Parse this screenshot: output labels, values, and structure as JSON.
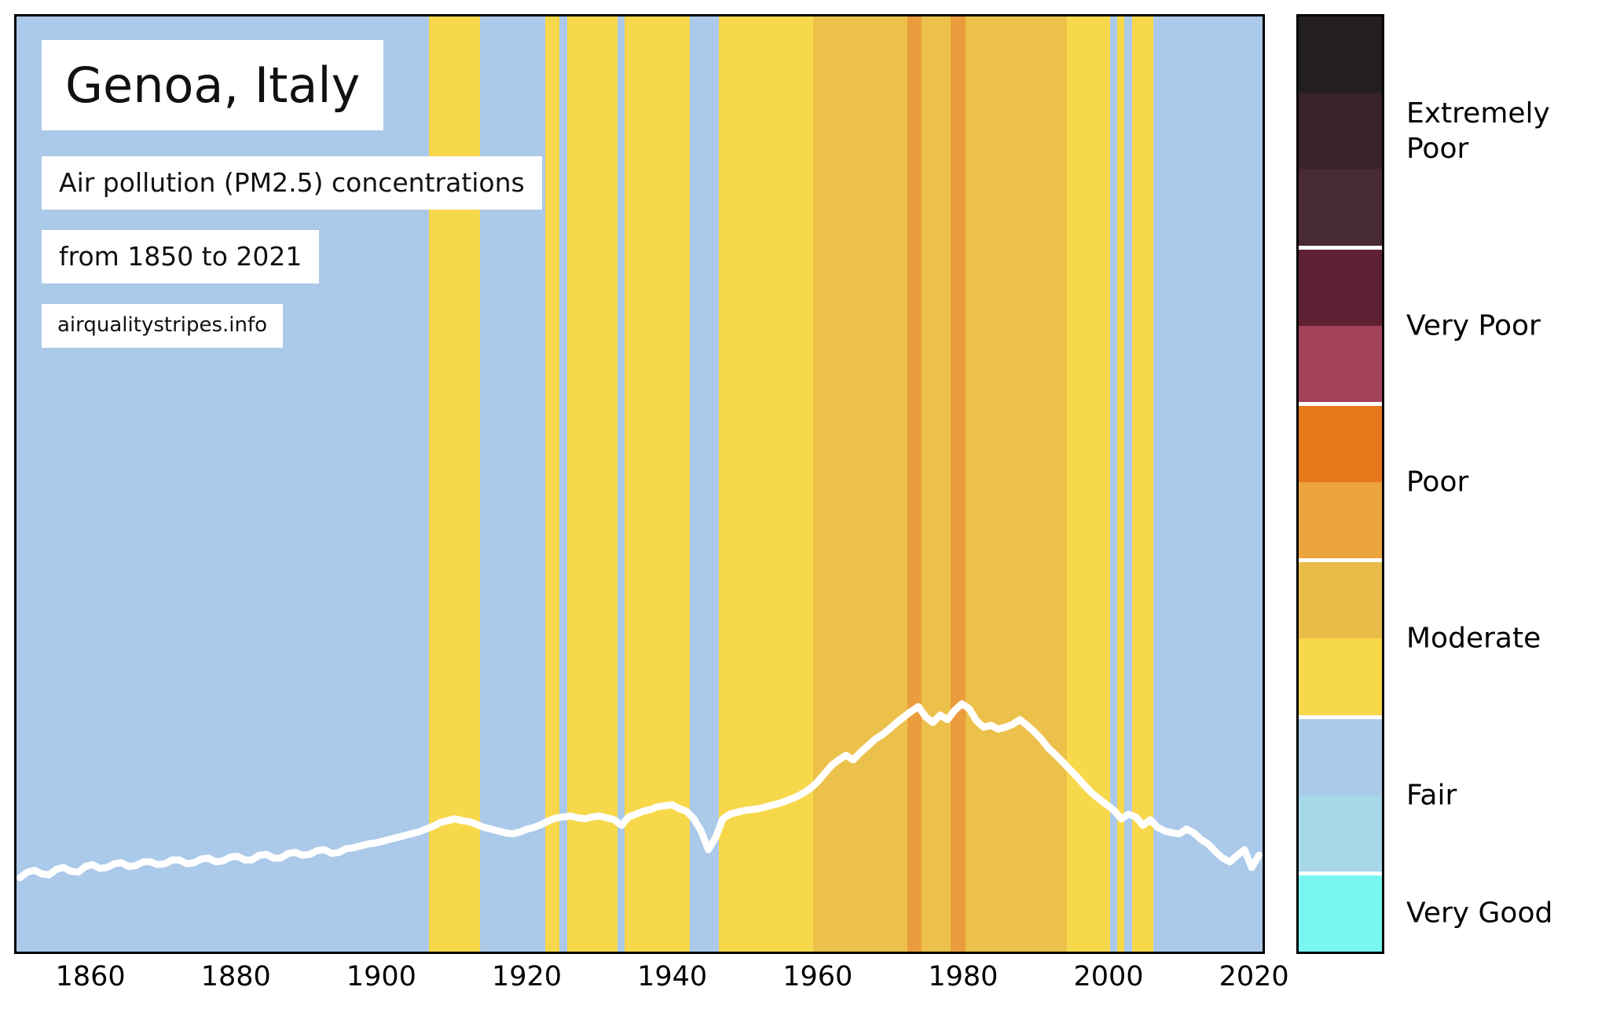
{
  "header": {
    "title": "Genoa, Italy",
    "subtitle": "Air pollution (PM2.5) concentrations",
    "period": "from 1850 to 2021",
    "source": "airqualitystripes.info"
  },
  "legend": {
    "categories": [
      {
        "label": "Extremely Poor",
        "blocks": [
          "#231f20",
          "#38232a",
          "#482a34"
        ]
      },
      {
        "label": "Very Poor",
        "blocks": [
          "#5e2033",
          "#a24258"
        ]
      },
      {
        "label": "Poor",
        "blocks": [
          "#e4781a",
          "#eca43f"
        ]
      },
      {
        "label": "Moderate",
        "blocks": [
          "#e8bc49",
          "#f8d84b"
        ]
      },
      {
        "label": "Fair",
        "blocks": [
          "#abc9e9",
          "#a6d8e9"
        ]
      },
      {
        "label": "Very Good",
        "blocks": [
          "#79f6f2"
        ]
      }
    ]
  },
  "chart_data": [
    {
      "type": "heatmap",
      "title": "Genoa, Italy",
      "subtitle": "Air pollution (PM2.5) concentrations from 1850 to 2021",
      "x_range": [
        1850,
        2021
      ],
      "x_ticks": [
        1860,
        1880,
        1900,
        1920,
        1940,
        1960,
        1980,
        2000,
        2020
      ],
      "stripe_colors": {
        "fair": "#abc9e9",
        "moderate_low": "#f8d84b",
        "moderate_high": "#ecc14b",
        "poor_low": "#eb9c3c"
      },
      "segments": [
        {
          "from": 1850,
          "to": 1906,
          "cat": "fair"
        },
        {
          "from": 1907,
          "to": 1913,
          "cat": "moderate_low"
        },
        {
          "from": 1914,
          "to": 1922,
          "cat": "fair"
        },
        {
          "from": 1923,
          "to": 1924,
          "cat": "moderate_low"
        },
        {
          "from": 1925,
          "to": 1925,
          "cat": "fair"
        },
        {
          "from": 1926,
          "to": 1932,
          "cat": "moderate_low"
        },
        {
          "from": 1933,
          "to": 1933,
          "cat": "fair"
        },
        {
          "from": 1934,
          "to": 1942,
          "cat": "moderate_low"
        },
        {
          "from": 1943,
          "to": 1946,
          "cat": "fair"
        },
        {
          "from": 1947,
          "to": 1959,
          "cat": "moderate_low"
        },
        {
          "from": 1960,
          "to": 1972,
          "cat": "moderate_high"
        },
        {
          "from": 1973,
          "to": 1974,
          "cat": "poor_low"
        },
        {
          "from": 1975,
          "to": 1978,
          "cat": "moderate_high"
        },
        {
          "from": 1979,
          "to": 1980,
          "cat": "poor_low"
        },
        {
          "from": 1981,
          "to": 1994,
          "cat": "moderate_high"
        },
        {
          "from": 1995,
          "to": 2000,
          "cat": "moderate_low"
        },
        {
          "from": 2001,
          "to": 2001,
          "cat": "fair"
        },
        {
          "from": 2002,
          "to": 2002,
          "cat": "moderate_low"
        },
        {
          "from": 2003,
          "to": 2003,
          "cat": "fair"
        },
        {
          "from": 2004,
          "to": 2006,
          "cat": "moderate_low"
        },
        {
          "from": 2007,
          "to": 2021,
          "cat": "fair"
        }
      ]
    },
    {
      "type": "line",
      "name": "PM2.5 concentration trend (white line, no numeric y-axis shown; values are fraction of plot height from bottom)",
      "points": [
        [
          1850,
          0.079
        ],
        [
          1851,
          0.085
        ],
        [
          1852,
          0.087
        ],
        [
          1853,
          0.083
        ],
        [
          1854,
          0.082
        ],
        [
          1855,
          0.088
        ],
        [
          1856,
          0.09
        ],
        [
          1857,
          0.086
        ],
        [
          1858,
          0.085
        ],
        [
          1859,
          0.091
        ],
        [
          1860,
          0.093
        ],
        [
          1861,
          0.089
        ],
        [
          1862,
          0.09
        ],
        [
          1863,
          0.094
        ],
        [
          1864,
          0.095
        ],
        [
          1865,
          0.091
        ],
        [
          1866,
          0.092
        ],
        [
          1867,
          0.096
        ],
        [
          1868,
          0.096
        ],
        [
          1869,
          0.093
        ],
        [
          1870,
          0.094
        ],
        [
          1871,
          0.098
        ],
        [
          1872,
          0.098
        ],
        [
          1873,
          0.094
        ],
        [
          1874,
          0.095
        ],
        [
          1875,
          0.099
        ],
        [
          1876,
          0.1
        ],
        [
          1877,
          0.096
        ],
        [
          1878,
          0.097
        ],
        [
          1879,
          0.101
        ],
        [
          1880,
          0.102
        ],
        [
          1881,
          0.098
        ],
        [
          1882,
          0.098
        ],
        [
          1883,
          0.103
        ],
        [
          1884,
          0.104
        ],
        [
          1885,
          0.1
        ],
        [
          1886,
          0.1
        ],
        [
          1887,
          0.105
        ],
        [
          1888,
          0.106
        ],
        [
          1889,
          0.103
        ],
        [
          1890,
          0.104
        ],
        [
          1891,
          0.108
        ],
        [
          1892,
          0.109
        ],
        [
          1893,
          0.105
        ],
        [
          1894,
          0.106
        ],
        [
          1895,
          0.11
        ],
        [
          1896,
          0.111
        ],
        [
          1897,
          0.113
        ],
        [
          1898,
          0.115
        ],
        [
          1899,
          0.116
        ],
        [
          1900,
          0.118
        ],
        [
          1901,
          0.12
        ],
        [
          1902,
          0.122
        ],
        [
          1903,
          0.124
        ],
        [
          1904,
          0.126
        ],
        [
          1905,
          0.128
        ],
        [
          1906,
          0.131
        ],
        [
          1907,
          0.134
        ],
        [
          1908,
          0.138
        ],
        [
          1909,
          0.14
        ],
        [
          1910,
          0.142
        ],
        [
          1911,
          0.14
        ],
        [
          1912,
          0.139
        ],
        [
          1913,
          0.136
        ],
        [
          1914,
          0.133
        ],
        [
          1915,
          0.131
        ],
        [
          1916,
          0.129
        ],
        [
          1917,
          0.127
        ],
        [
          1918,
          0.126
        ],
        [
          1919,
          0.128
        ],
        [
          1920,
          0.131
        ],
        [
          1921,
          0.133
        ],
        [
          1922,
          0.136
        ],
        [
          1923,
          0.14
        ],
        [
          1924,
          0.143
        ],
        [
          1925,
          0.144
        ],
        [
          1926,
          0.145
        ],
        [
          1927,
          0.143
        ],
        [
          1928,
          0.142
        ],
        [
          1929,
          0.144
        ],
        [
          1930,
          0.145
        ],
        [
          1931,
          0.143
        ],
        [
          1932,
          0.141
        ],
        [
          1933,
          0.135
        ],
        [
          1934,
          0.144
        ],
        [
          1935,
          0.147
        ],
        [
          1936,
          0.15
        ],
        [
          1937,
          0.152
        ],
        [
          1938,
          0.155
        ],
        [
          1939,
          0.156
        ],
        [
          1940,
          0.157
        ],
        [
          1941,
          0.153
        ],
        [
          1942,
          0.15
        ],
        [
          1943,
          0.142
        ],
        [
          1944,
          0.129
        ],
        [
          1945,
          0.109
        ],
        [
          1946,
          0.122
        ],
        [
          1947,
          0.142
        ],
        [
          1948,
          0.147
        ],
        [
          1949,
          0.149
        ],
        [
          1950,
          0.151
        ],
        [
          1951,
          0.152
        ],
        [
          1952,
          0.153
        ],
        [
          1953,
          0.155
        ],
        [
          1954,
          0.157
        ],
        [
          1955,
          0.159
        ],
        [
          1956,
          0.162
        ],
        [
          1957,
          0.165
        ],
        [
          1958,
          0.169
        ],
        [
          1959,
          0.174
        ],
        [
          1960,
          0.181
        ],
        [
          1961,
          0.19
        ],
        [
          1962,
          0.199
        ],
        [
          1963,
          0.205
        ],
        [
          1964,
          0.21
        ],
        [
          1965,
          0.205
        ],
        [
          1966,
          0.213
        ],
        [
          1967,
          0.22
        ],
        [
          1968,
          0.227
        ],
        [
          1969,
          0.232
        ],
        [
          1970,
          0.238
        ],
        [
          1971,
          0.245
        ],
        [
          1972,
          0.251
        ],
        [
          1973,
          0.257
        ],
        [
          1974,
          0.262
        ],
        [
          1975,
          0.251
        ],
        [
          1976,
          0.245
        ],
        [
          1977,
          0.253
        ],
        [
          1978,
          0.248
        ],
        [
          1979,
          0.258
        ],
        [
          1980,
          0.265
        ],
        [
          1981,
          0.26
        ],
        [
          1982,
          0.247
        ],
        [
          1983,
          0.24
        ],
        [
          1984,
          0.242
        ],
        [
          1985,
          0.238
        ],
        [
          1986,
          0.24
        ],
        [
          1987,
          0.243
        ],
        [
          1988,
          0.248
        ],
        [
          1989,
          0.242
        ],
        [
          1990,
          0.235
        ],
        [
          1991,
          0.227
        ],
        [
          1992,
          0.217
        ],
        [
          1993,
          0.21
        ],
        [
          1994,
          0.202
        ],
        [
          1995,
          0.194
        ],
        [
          1996,
          0.186
        ],
        [
          1997,
          0.177
        ],
        [
          1998,
          0.169
        ],
        [
          1999,
          0.163
        ],
        [
          2000,
          0.157
        ],
        [
          2001,
          0.151
        ],
        [
          2002,
          0.142
        ],
        [
          2003,
          0.147
        ],
        [
          2004,
          0.144
        ],
        [
          2005,
          0.135
        ],
        [
          2006,
          0.141
        ],
        [
          2007,
          0.133
        ],
        [
          2008,
          0.129
        ],
        [
          2009,
          0.127
        ],
        [
          2010,
          0.126
        ],
        [
          2011,
          0.131
        ],
        [
          2012,
          0.127
        ],
        [
          2013,
          0.12
        ],
        [
          2014,
          0.115
        ],
        [
          2015,
          0.107
        ],
        [
          2016,
          0.1
        ],
        [
          2017,
          0.096
        ],
        [
          2018,
          0.103
        ],
        [
          2019,
          0.109
        ],
        [
          2020,
          0.09
        ],
        [
          2021,
          0.103
        ]
      ]
    }
  ]
}
